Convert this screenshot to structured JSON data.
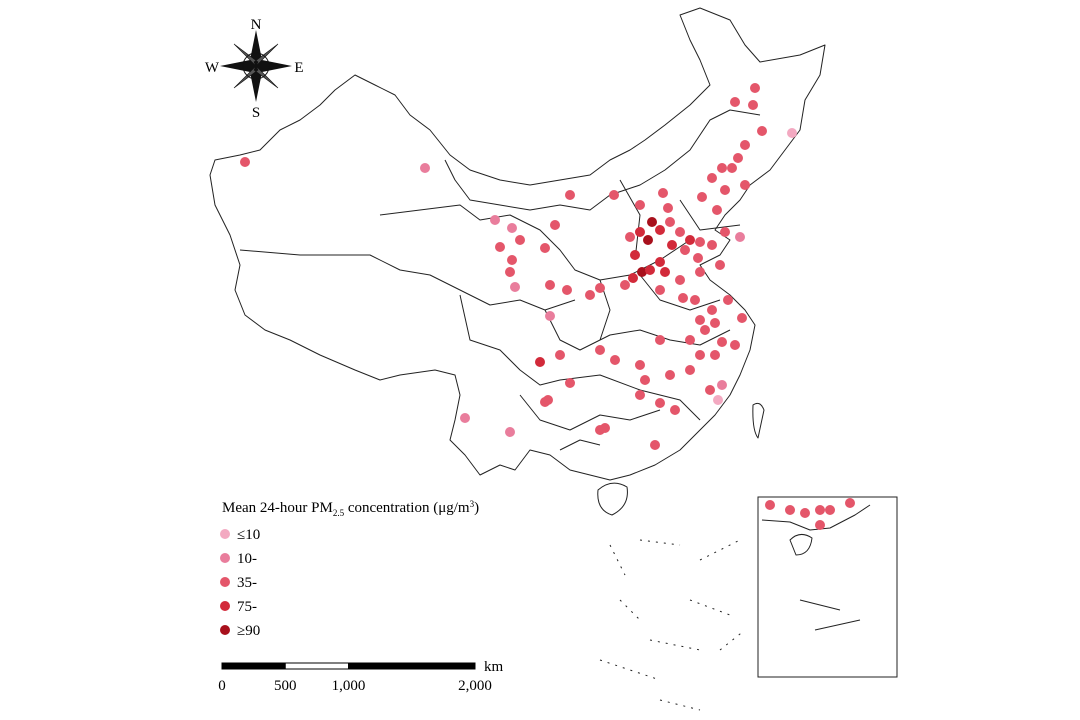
{
  "compass": {
    "north": "N",
    "south": "S",
    "east": "E",
    "west": "W"
  },
  "legend": {
    "title": {
      "text1": "Mean 24-hour PM",
      "sub": "2.5",
      "text2": " concentration (μg/m",
      "sup": "3",
      "text3": ")"
    },
    "items": [
      {
        "label": "≤10",
        "color": "#f3a9c1"
      },
      {
        "label": "10-",
        "color": "#e97d9c"
      },
      {
        "label": "35-",
        "color": "#e4566a"
      },
      {
        "label": "75-",
        "color": "#d22a3a"
      },
      {
        "label": "≥90",
        "color": "#a8101c"
      }
    ]
  },
  "scale": {
    "unit": "km",
    "ticks": [
      0,
      500,
      {
        "value": 1000,
        "label": "1,000"
      },
      {
        "value": 2000,
        "label": "2,000"
      }
    ]
  }
}
